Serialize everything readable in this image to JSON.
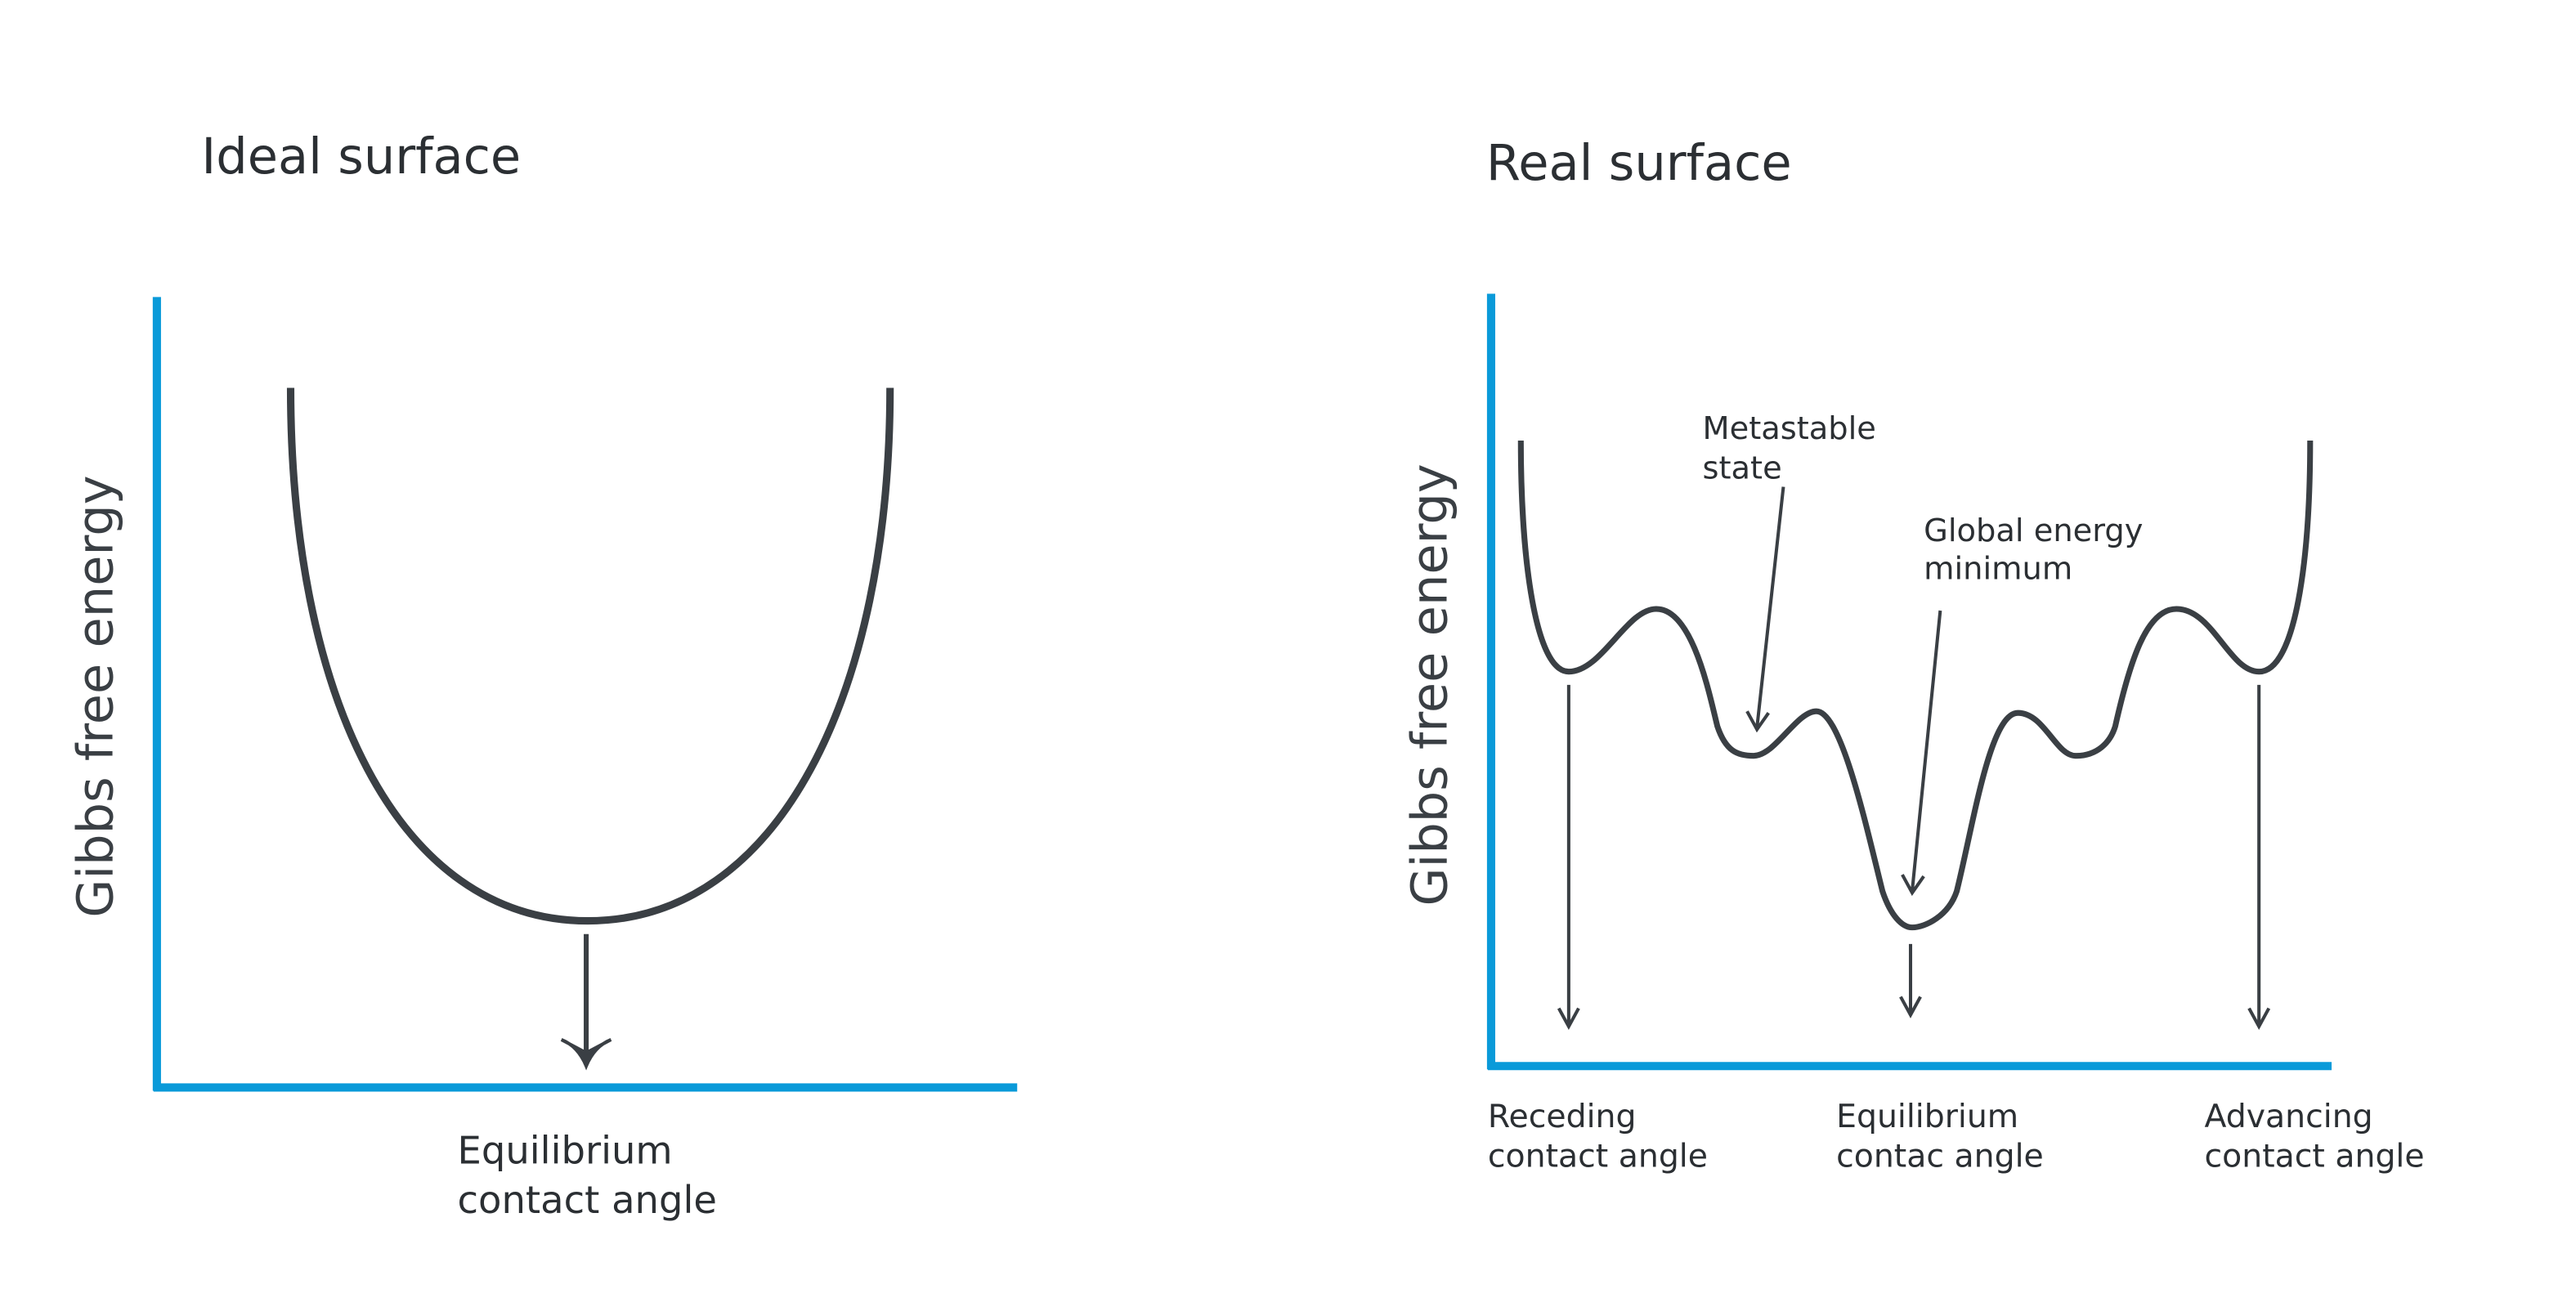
{
  "colors": {
    "axis": "#0a9ad9",
    "curve": "#3a3f44",
    "text": "#2b2f33"
  },
  "left_panel": {
    "title": "Ideal surface",
    "ylabel": "Gibbs free energy",
    "xlabel_line1": "Equilibrium",
    "xlabel_line2": "contact angle"
  },
  "right_panel": {
    "title": "Real surface",
    "ylabel": "Gibbs free energy",
    "annotations": {
      "metastable_line1": "Metastable",
      "metastable_line2": "state",
      "global_line1": "Global energy",
      "global_line2": "minimum"
    },
    "xlabels": [
      {
        "line1": "Receding",
        "line2": "contact angle"
      },
      {
        "line1": "Equilibrium",
        "line2": "contac angle"
      },
      {
        "line1": "Advancing",
        "line2": "contact angle"
      }
    ]
  }
}
